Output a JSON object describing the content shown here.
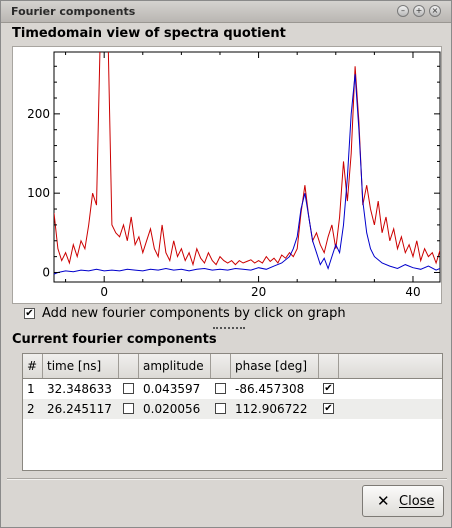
{
  "window": {
    "title": "Fourier components",
    "controls": [
      "minimize-icon",
      "maximize-icon",
      "close-icon"
    ]
  },
  "plot_section": {
    "title": "Timedomain view of spectra quotient"
  },
  "chart_data": {
    "type": "line",
    "xlabel": "",
    "ylabel": "",
    "xlim": [
      -6.5,
      43.5
    ],
    "ylim": [
      -12,
      278
    ],
    "xticks": [
      0,
      20,
      40
    ],
    "yticks": [
      0,
      100,
      200
    ],
    "grid": false,
    "legend": "none",
    "series": [
      {
        "color": "#cc0000",
        "x": [
          -6.5,
          -6,
          -5.5,
          -5,
          -4.5,
          -4,
          -3.5,
          -3,
          -2.5,
          -2,
          -1.5,
          -1,
          -0.5,
          0,
          0.5,
          1,
          1.5,
          2,
          2.5,
          3,
          3.5,
          4,
          4.5,
          5,
          5.5,
          6,
          6.5,
          7,
          7.5,
          8,
          8.5,
          9,
          9.5,
          10,
          10.5,
          11,
          11.5,
          12,
          12.5,
          13,
          13.5,
          14,
          14.5,
          15,
          15.5,
          16,
          16.5,
          17,
          17.5,
          18,
          18.5,
          19,
          19.5,
          20,
          20.5,
          21,
          21.5,
          22,
          22.5,
          23,
          23.5,
          24,
          24.5,
          25,
          25.5,
          26,
          26.5,
          27,
          27.5,
          28,
          28.5,
          29,
          29.5,
          30,
          30.5,
          31,
          31.5,
          32,
          32.5,
          33,
          33.5,
          34,
          34.5,
          35,
          35.5,
          36,
          36.5,
          37,
          37.5,
          38,
          38.5,
          39,
          39.5,
          40,
          40.5,
          41,
          41.5,
          42,
          42.5,
          43,
          43.5
        ],
        "y": [
          75,
          30,
          15,
          25,
          12,
          35,
          20,
          40,
          30,
          60,
          100,
          85,
          300,
          300,
          300,
          60,
          50,
          45,
          60,
          40,
          70,
          35,
          45,
          25,
          40,
          55,
          30,
          20,
          60,
          25,
          15,
          40,
          20,
          30,
          15,
          25,
          10,
          30,
          18,
          12,
          25,
          15,
          10,
          20,
          15,
          12,
          15,
          10,
          15,
          12,
          14,
          16,
          12,
          15,
          12,
          20,
          14,
          18,
          12,
          22,
          18,
          25,
          20,
          30,
          75,
          110,
          70,
          40,
          50,
          35,
          25,
          45,
          60,
          30,
          70,
          140,
          90,
          150,
          260,
          190,
          85,
          110,
          80,
          60,
          90,
          50,
          70,
          40,
          55,
          30,
          45,
          25,
          35,
          20,
          40,
          15,
          30,
          20,
          25,
          12,
          28
        ]
      },
      {
        "color": "#0000cc",
        "x": [
          -6.5,
          -6,
          -5,
          -4,
          -3,
          -2,
          -1,
          0,
          1,
          2,
          3,
          4,
          5,
          6,
          7,
          8,
          9,
          10,
          11,
          12,
          13,
          14,
          15,
          16,
          17,
          18,
          19,
          20,
          21,
          22,
          23,
          24,
          24.5,
          25,
          25.5,
          26,
          26.5,
          27,
          27.5,
          28,
          28.5,
          29,
          29.5,
          30,
          30.5,
          31,
          31.5,
          32,
          32.5,
          33,
          33.5,
          34,
          34.5,
          35,
          36,
          37,
          38,
          39,
          40,
          41,
          42,
          43,
          43.5
        ],
        "y": [
          -2,
          0,
          2,
          1,
          3,
          2,
          4,
          2,
          3,
          2,
          4,
          3,
          2,
          4,
          3,
          5,
          3,
          4,
          2,
          4,
          5,
          3,
          4,
          3,
          5,
          4,
          3,
          6,
          4,
          8,
          12,
          20,
          30,
          45,
          80,
          100,
          70,
          40,
          25,
          10,
          18,
          5,
          20,
          35,
          25,
          60,
          120,
          200,
          250,
          180,
          90,
          50,
          30,
          20,
          12,
          8,
          5,
          10,
          6,
          4,
          8,
          3,
          5
        ]
      }
    ]
  },
  "checkbox": {
    "label": "Add new fourier components by click on graph",
    "checked": "✔"
  },
  "components_section": {
    "title": "Current fourier components"
  },
  "table": {
    "headers": [
      "#",
      "time [ns]",
      "",
      "amplitude",
      "",
      "phase [deg]",
      ""
    ],
    "rows": [
      {
        "index": "1",
        "time": "32.348633",
        "amplitude": "0.043597",
        "phase": "-86.457308",
        "phase_checked": "✔"
      },
      {
        "index": "2",
        "time": "26.245117",
        "amplitude": "0.020056",
        "phase": "112.906722",
        "phase_checked": "✔"
      }
    ]
  },
  "buttons": {
    "close_icon": "close-icon",
    "close_label": "Close"
  }
}
